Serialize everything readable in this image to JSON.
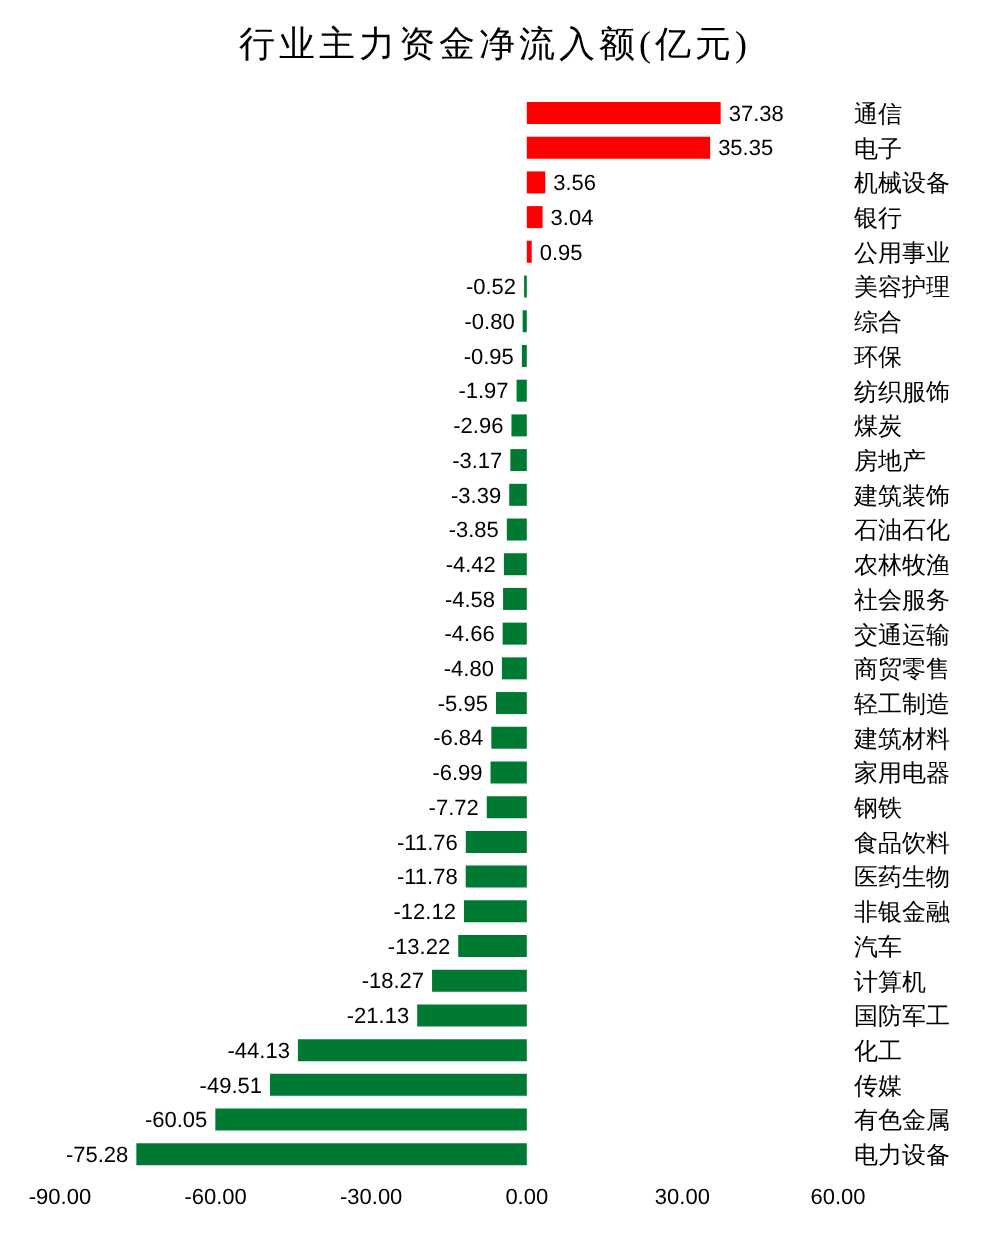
{
  "chart_data": {
    "type": "bar",
    "orientation": "horizontal",
    "title": "行业主力资金净流入额(亿元)",
    "categories": [
      "通信",
      "电子",
      "机械设备",
      "银行",
      "公用事业",
      "美容护理",
      "综合",
      "环保",
      "纺织服饰",
      "煤炭",
      "房地产",
      "建筑装饰",
      "石油石化",
      "农林牧渔",
      "社会服务",
      "交通运输",
      "商贸零售",
      "轻工制造",
      "建筑材料",
      "家用电器",
      "钢铁",
      "食品饮料",
      "医药生物",
      "非银金融",
      "汽车",
      "计算机",
      "国防军工",
      "化工",
      "传媒",
      "有色金属",
      "电力设备"
    ],
    "values": [
      37.38,
      35.35,
      3.56,
      3.04,
      0.95,
      -0.52,
      -0.8,
      -0.95,
      -1.97,
      -2.96,
      -3.17,
      -3.39,
      -3.85,
      -4.42,
      -4.58,
      -4.66,
      -4.8,
      -5.95,
      -6.84,
      -6.99,
      -7.72,
      -11.76,
      -11.78,
      -12.12,
      -13.22,
      -18.27,
      -21.13,
      -44.13,
      -49.51,
      -60.05,
      -75.28
    ],
    "value_labels": [
      "37.38",
      "35.35",
      "3.56",
      "3.04",
      "0.95",
      "-0.52",
      "-0.80",
      "-0.95",
      "-1.97",
      "-2.96",
      "-3.17",
      "-3.39",
      "-3.85",
      "-4.42",
      "-4.58",
      "-4.66",
      "-4.80",
      "-5.95",
      "-6.84",
      "-6.99",
      "-7.72",
      "-11.76",
      "-11.78",
      "-12.12",
      "-13.22",
      "-18.27",
      "-21.13",
      "-44.13",
      "-49.51",
      "-60.05",
      "-75.28"
    ],
    "colors": [
      "#ff0000",
      "#ff0000",
      "#ff0000",
      "#ff0000",
      "#ff0000",
      "#007a33",
      "#007a33",
      "#007a33",
      "#007a33",
      "#007a33",
      "#007a33",
      "#007a33",
      "#007a33",
      "#007a33",
      "#007a33",
      "#007a33",
      "#007a33",
      "#007a33",
      "#007a33",
      "#007a33",
      "#007a33",
      "#007a33",
      "#007a33",
      "#007a33",
      "#007a33",
      "#007a33",
      "#007a33",
      "#007a33",
      "#007a33",
      "#007a33",
      "#007a33"
    ],
    "xlim": [
      -90,
      60
    ],
    "xticks": [
      {
        "value": -90,
        "label": "-90.00"
      },
      {
        "value": -60,
        "label": "-60.00"
      },
      {
        "value": -30,
        "label": "-30.00"
      },
      {
        "value": 0,
        "label": "0.00"
      },
      {
        "value": 30,
        "label": "30.00"
      },
      {
        "value": 60,
        "label": "60.00"
      }
    ],
    "grid": false,
    "legend": false
  }
}
